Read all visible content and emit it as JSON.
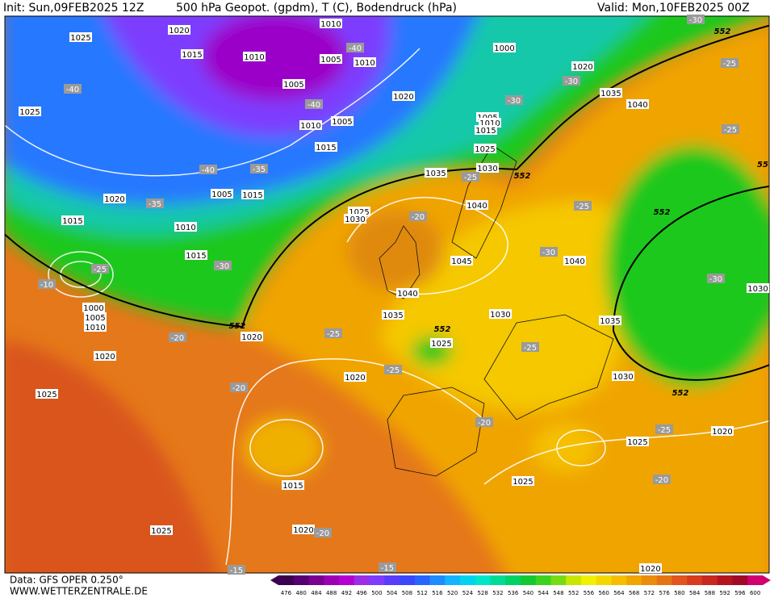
{
  "header": {
    "init": "Init: Sun,09FEB2025 12Z",
    "title": "500 hPa Geopot. (gpdm), T (C), Bodendruck (hPa)",
    "valid": "Valid: Mon,10FEB2025 00Z"
  },
  "footer": {
    "data_source": "Data: GFS OPER 0.250°",
    "website": "WWW.WETTERZENTRALE.DE"
  },
  "map": {
    "pressure_labels": [
      "1025",
      "1020",
      "1015",
      "1010",
      "1010",
      "1005",
      "1010",
      "1000",
      "1020",
      "1035",
      "1040",
      "1025",
      "1005",
      "1020",
      "1005",
      "1010",
      "1015",
      "1025",
      "1010",
      "1005",
      "1015",
      "1035",
      "1030",
      "1020",
      "1005",
      "1015",
      "1015",
      "1010",
      "1025",
      "1030",
      "1040",
      "1015",
      "1045",
      "1040",
      "1000",
      "1005",
      "1010",
      "1040",
      "1035",
      "1030",
      "1035",
      "1020",
      "1025",
      "1020",
      "1020",
      "1030",
      "1025",
      "1015",
      "1025",
      "1020",
      "1025",
      "1025",
      "1020",
      "1030",
      "1020"
    ],
    "temperature_labels": [
      "-40",
      "-35",
      "-30",
      "-25",
      "-40",
      "-40",
      "-35",
      "-20",
      "-25",
      "-30",
      "-30",
      "-25",
      "-30",
      "-25",
      "-25",
      "-30",
      "-30",
      "-25",
      "-25",
      "-25",
      "-20",
      "-20",
      "-20",
      "-25",
      "-20",
      "-20",
      "-15",
      "-15",
      "-10",
      "-40"
    ],
    "height_labels": [
      "552",
      "552",
      "552",
      "552",
      "552",
      "552",
      "55"
    ]
  },
  "scale": {
    "values": [
      476,
      480,
      484,
      488,
      492,
      496,
      500,
      504,
      508,
      512,
      516,
      520,
      524,
      528,
      532,
      536,
      540,
      544,
      548,
      552,
      556,
      560,
      564,
      568,
      572,
      576,
      580,
      584,
      588,
      592,
      596,
      600
    ],
    "colors": [
      "#3c0050",
      "#55006e",
      "#7a0090",
      "#9b00b4",
      "#b400d0",
      "#9b2ee6",
      "#7d3cff",
      "#5a3cff",
      "#3c46ff",
      "#2864ff",
      "#1e8cff",
      "#14b4ff",
      "#00d2f0",
      "#00e6c8",
      "#00dc96",
      "#00d264",
      "#14c832",
      "#3cd21e",
      "#78dc14",
      "#c8e600",
      "#f0f000",
      "#f5d700",
      "#f5be00",
      "#f0a500",
      "#eb8c0a",
      "#e67314",
      "#e1551e",
      "#d73c1e",
      "#c8281e",
      "#b4141e",
      "#a00a28",
      "#d2006e"
    ]
  }
}
